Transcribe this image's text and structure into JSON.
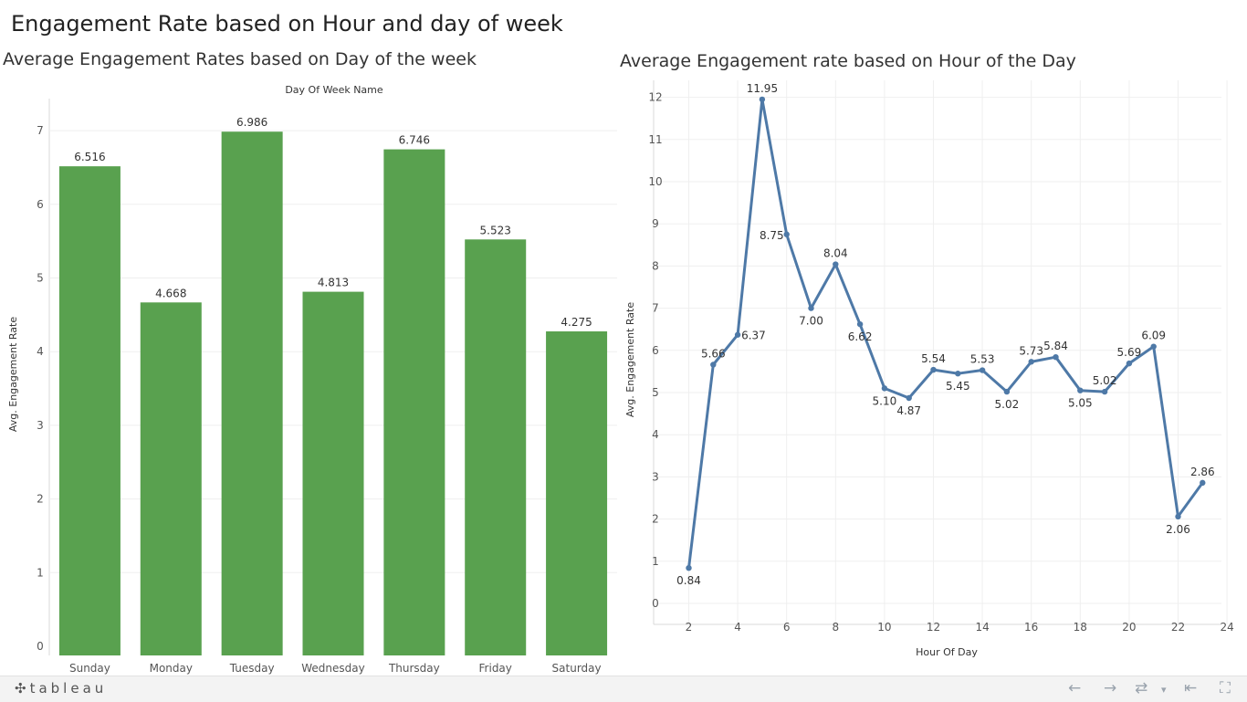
{
  "dashboard": {
    "title": "Engagement Rate based on Hour and day of week"
  },
  "chart_data": [
    {
      "type": "bar",
      "title": "Average Engagement Rates based on Day of the week",
      "xlabel": "Day Of Week Name",
      "ylabel": "Avg. Engagement Rate",
      "categories": [
        "Sunday",
        "Monday",
        "Tuesday",
        "Wednesday",
        "Thursday",
        "Friday",
        "Saturday"
      ],
      "values": [
        6.516,
        4.668,
        6.986,
        4.813,
        6.746,
        5.523,
        4.275
      ],
      "data_labels": [
        "6.516",
        "4.668",
        "6.986",
        "4.813",
        "6.746",
        "5.523",
        "4.275"
      ],
      "ylim": [
        0,
        7.5
      ],
      "yticks": [
        0,
        1,
        2,
        3,
        4,
        5,
        6,
        7
      ],
      "bar_color": "#59a14f",
      "grid": true
    },
    {
      "type": "line",
      "title": "Average Engagement rate based on Hour of the Day",
      "xlabel": "Hour Of Day",
      "ylabel": "Avg. Engagement Rate",
      "x": [
        2,
        3,
        4,
        5,
        6,
        7,
        8,
        9,
        10,
        11,
        12,
        13,
        14,
        15,
        16,
        17,
        18,
        19,
        20,
        21,
        22,
        23
      ],
      "y": [
        0.84,
        5.66,
        6.37,
        11.95,
        8.75,
        7.0,
        8.04,
        6.62,
        5.1,
        4.87,
        5.54,
        5.45,
        5.53,
        5.02,
        5.73,
        5.84,
        5.05,
        5.02,
        5.69,
        6.09,
        2.06,
        2.86
      ],
      "data_labels": [
        "0.84",
        "5.66",
        "6.37",
        "11.95",
        "8.75",
        "7.00",
        "8.04",
        "6.62",
        "5.10",
        "4.87",
        "5.54",
        "5.45",
        "5.53",
        "5.02",
        "5.73",
        "5.84",
        "5.05",
        "5.02",
        "5.69",
        "6.09",
        "2.06",
        "2.86"
      ],
      "label_positions": [
        "below",
        "above",
        "right",
        "above",
        "left",
        "below",
        "above",
        "below",
        "below",
        "below",
        "above",
        "below",
        "above",
        "below",
        "above",
        "above",
        "below",
        "above",
        "above",
        "above",
        "below",
        "above"
      ],
      "xlim": [
        0.8,
        24.2
      ],
      "ylim": [
        -0.3,
        12.6
      ],
      "xticks": [
        2,
        4,
        6,
        8,
        10,
        12,
        14,
        16,
        18,
        20,
        22,
        24
      ],
      "yticks": [
        0,
        1,
        2,
        3,
        4,
        5,
        6,
        7,
        8,
        9,
        10,
        11,
        12
      ],
      "line_color": "#4e79a7",
      "grid": true
    }
  ],
  "footer": {
    "logo_text": "tableau",
    "icons": [
      "tableau-logo-icon",
      "undo-icon",
      "redo-icon",
      "revert-icon",
      "dropdown-icon",
      "reset-icon",
      "fullscreen-icon"
    ]
  }
}
